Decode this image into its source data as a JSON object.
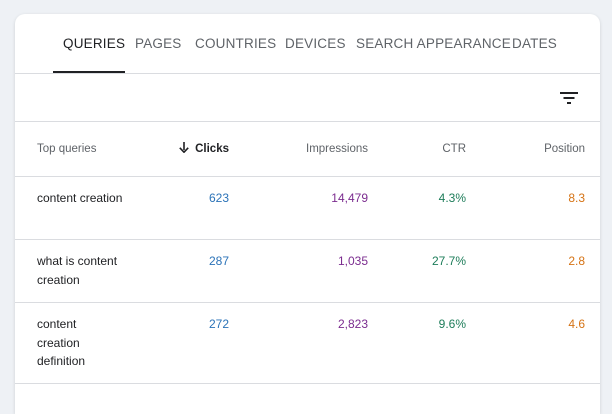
{
  "tabs": [
    {
      "label": "QUERIES"
    },
    {
      "label": "PAGES"
    },
    {
      "label": "COUNTRIES"
    },
    {
      "label": "DEVICES"
    },
    {
      "label": "SEARCH APPEARANCE"
    },
    {
      "label": "DATES"
    }
  ],
  "active_tab": "QUERIES",
  "filter": {
    "icon": "filter-icon"
  },
  "table": {
    "headers": {
      "query": "Top queries",
      "clicks": "Clicks",
      "clicks_sort_icon": "arrow-down-icon",
      "impressions": "Impressions",
      "ctr": "CTR",
      "position": "Position"
    },
    "rows": [
      {
        "query": "content creation",
        "clicks": "623",
        "impressions": "14,479",
        "ctr": "4.3%",
        "position": "8.3"
      },
      {
        "query": "what is content creation",
        "clicks": "287",
        "impressions": "1,035",
        "ctr": "27.7%",
        "position": "2.8"
      },
      {
        "query": "content creation definition",
        "clicks": "272",
        "impressions": "2,823",
        "ctr": "9.6%",
        "position": "4.6"
      }
    ]
  },
  "colors": {
    "clicks": "#2b73b8",
    "impressions": "#7b2c8f",
    "ctr": "#1e7d5a",
    "position": "#d57315"
  }
}
